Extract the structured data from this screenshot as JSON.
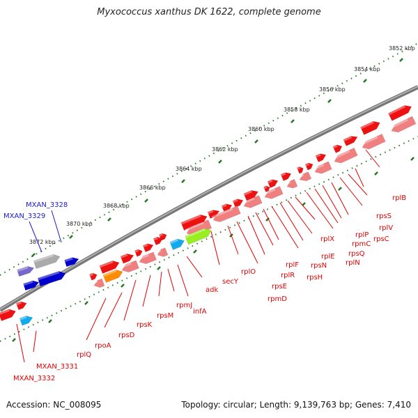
{
  "title": "Myxococcus xanthus DK 1622, complete genome",
  "footer": {
    "accession": "Accession: NC_008095",
    "summary": "Topology: circular; Length: 9,139,763 bp; Genes: 7,410"
  },
  "ticks": [
    "3852 kbp",
    "3854 kbp",
    "3856 kbp",
    "3858 kbp",
    "3860 kbp",
    "3862 kbp",
    "3864 kbp",
    "3866 kbp",
    "3868 kbp",
    "3870 kbp",
    "3872 kbp"
  ],
  "colors": {
    "ribosomal_forward": "#ee1111",
    "ribosomal_reverse": "#f08080",
    "secY": "#99ee22",
    "adk": "#11aaee",
    "rpoA": "#ff8c00",
    "other_forward": "#0000cc",
    "other_gray": "#aaaaaa",
    "other_violet": "#7766cc",
    "backbone": "#777777",
    "tick": "#227722"
  },
  "labels": {
    "red": [
      "rplB",
      "rpsS",
      "rplV",
      "rpsC",
      "rplP",
      "rpmC",
      "rpsQ",
      "rplN",
      "rplX",
      "rplE",
      "rpsN",
      "rpsH",
      "rplF",
      "rplR",
      "rpsE",
      "rpmD",
      "rplO",
      "secY",
      "adk",
      "infA",
      "rpmJ",
      "rpsM",
      "rpsK",
      "rpsD",
      "rpoA",
      "rplQ",
      "MXAN_3331",
      "MXAN_3332"
    ],
    "blue": [
      "MXAN_3328",
      "MXAN_3329"
    ]
  }
}
